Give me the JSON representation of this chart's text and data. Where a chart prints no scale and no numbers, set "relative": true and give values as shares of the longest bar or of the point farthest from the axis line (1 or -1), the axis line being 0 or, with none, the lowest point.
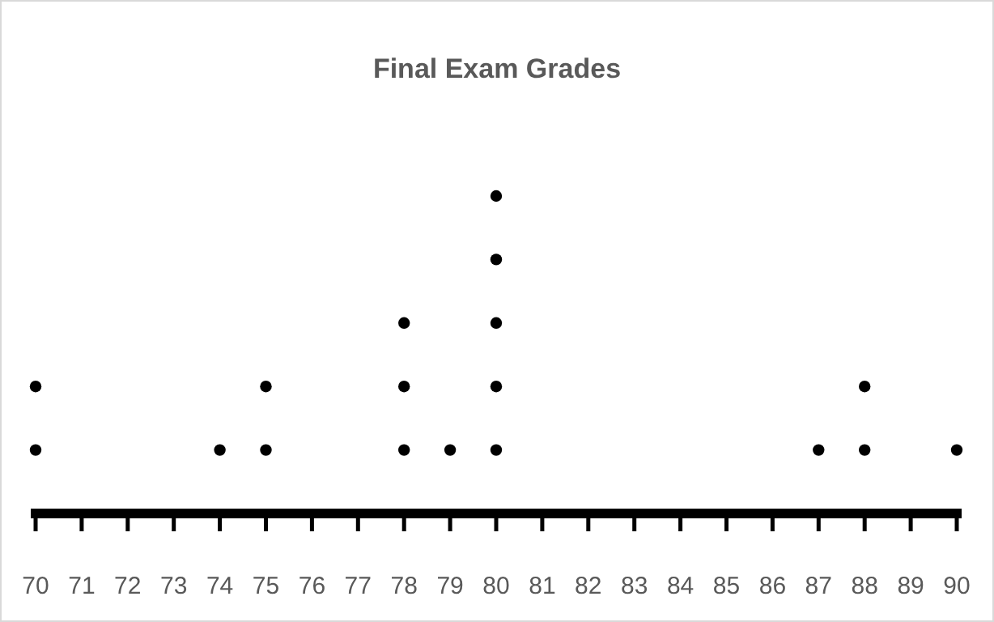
{
  "chart_data": {
    "type": "scatter",
    "title": "Final Exam Grades",
    "relative": true,
    "marker": "circle",
    "color": "#000000",
    "x": [
      70,
      70,
      74,
      75,
      75,
      78,
      78,
      78,
      79,
      80,
      80,
      80,
      80,
      80,
      87,
      88,
      88,
      90
    ],
    "values": [
      0.2,
      0.4,
      0.2,
      0.2,
      0.4,
      0.2,
      0.4,
      0.6,
      0.2,
      0.2,
      0.4,
      0.6,
      0.8,
      1,
      0.2,
      0.2,
      0.4,
      0.2
    ],
    "xlim": [
      70,
      90
    ],
    "xticks": [
      70,
      71,
      72,
      73,
      74,
      75,
      76,
      77,
      78,
      79,
      80,
      81,
      82,
      83,
      84,
      85,
      86,
      87,
      88,
      89,
      90
    ]
  }
}
